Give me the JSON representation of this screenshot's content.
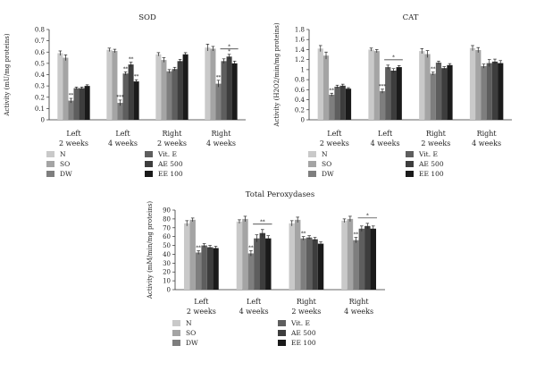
{
  "chart_data": [
    {
      "type": "bar",
      "title": "SOD",
      "ylabel": "Activity (mU/mg proteins)",
      "ylim": [
        0,
        0.8
      ],
      "yticks": [
        "0",
        "0.1",
        "0.2",
        "0.3",
        "0.4",
        "0.5",
        "0.6",
        "0.7",
        "0.8"
      ],
      "categories": [
        [
          "Left",
          "2 weeks"
        ],
        [
          "Left",
          "4 weeks"
        ],
        [
          "Right",
          "2 weeks"
        ],
        [
          "Right",
          "4 weeks"
        ]
      ],
      "series": [
        {
          "name": "N",
          "values": [
            0.59,
            0.62,
            0.58,
            0.64
          ],
          "errors": [
            0.02,
            0.015,
            0.015,
            0.03
          ]
        },
        {
          "name": "SO",
          "values": [
            0.55,
            0.61,
            0.53,
            0.63
          ],
          "errors": [
            0.025,
            0.015,
            0.02,
            0.02
          ]
        },
        {
          "name": "DW",
          "values": [
            0.17,
            0.15,
            0.43,
            0.32
          ],
          "errors": [
            0.02,
            0.025,
            0.015,
            0.03
          ]
        },
        {
          "name": "Vit. E",
          "values": [
            0.28,
            0.41,
            0.45,
            0.52
          ],
          "errors": [
            0.01,
            0.015,
            0.015,
            0.02
          ]
        },
        {
          "name": "AE 500",
          "values": [
            0.28,
            0.49,
            0.52,
            0.56
          ],
          "errors": [
            0.01,
            0.02,
            0.015,
            0.02
          ]
        },
        {
          "name": "EE 100",
          "values": [
            0.3,
            0.34,
            0.58,
            0.5
          ],
          "errors": [
            0.01,
            0.015,
            0.015,
            0.02
          ]
        }
      ],
      "annotations": [
        {
          "text": "**",
          "category": 0,
          "series": 2
        },
        {
          "text": "***",
          "category": 1,
          "series": 2
        },
        {
          "text": "**",
          "category": 1,
          "series": 3
        },
        {
          "text": "**",
          "category": 1,
          "series": 4
        },
        {
          "text": "**",
          "category": 1,
          "series": 5
        },
        {
          "text": "**",
          "category": 3,
          "series": 2
        },
        {
          "text": "*",
          "category": 3,
          "series": 4
        }
      ],
      "brackets": [
        {
          "category": 3,
          "from_series": 3,
          "to_series": 5,
          "text": "*"
        }
      ]
    },
    {
      "type": "bar",
      "title": "CAT",
      "ylabel": "Activity (H2O2/min/mg proteins)",
      "ylim": [
        0,
        1.8
      ],
      "yticks": [
        "0",
        "0.2",
        "0.4",
        "0.6",
        "0.8",
        "1",
        "1.2",
        "1.4",
        "1.6",
        "1.8"
      ],
      "categories": [
        [
          "Left",
          "2 weeks"
        ],
        [
          "Left",
          "4 weeks"
        ],
        [
          "Right",
          "2 weeks"
        ],
        [
          "Right",
          "4 weeks"
        ]
      ],
      "series": [
        {
          "name": "N",
          "values": [
            1.42,
            1.4,
            1.37,
            1.43
          ],
          "errors": [
            0.06,
            0.03,
            0.05,
            0.05
          ]
        },
        {
          "name": "SO",
          "values": [
            1.28,
            1.37,
            1.31,
            1.39
          ],
          "errors": [
            0.07,
            0.03,
            0.07,
            0.05
          ]
        },
        {
          "name": "DW",
          "values": [
            0.5,
            0.57,
            0.92,
            1.07
          ],
          "errors": [
            0.03,
            0.04,
            0.03,
            0.04
          ]
        },
        {
          "name": "Vit. E",
          "values": [
            0.66,
            1.05,
            1.14,
            1.13
          ],
          "errors": [
            0.03,
            0.04,
            0.03,
            0.07
          ]
        },
        {
          "name": "AE 500",
          "values": [
            0.68,
            0.98,
            1.03,
            1.16
          ],
          "errors": [
            0.03,
            0.04,
            0.03,
            0.05
          ]
        },
        {
          "name": "EE 100",
          "values": [
            0.62,
            1.05,
            1.09,
            1.13
          ],
          "errors": [
            0.02,
            0.03,
            0.03,
            0.05
          ]
        }
      ],
      "annotations": [
        {
          "text": "**",
          "category": 0,
          "series": 2
        },
        {
          "text": "***",
          "category": 1,
          "series": 2
        },
        {
          "text": "**",
          "category": 2,
          "series": 2
        }
      ],
      "brackets": [
        {
          "category": 1,
          "from_series": 3,
          "to_series": 5,
          "text": "*"
        }
      ]
    },
    {
      "type": "bar",
      "title": "Total Peroxydases",
      "ylabel": "Activity (mM/min/mg proteins)",
      "ylim": [
        0,
        90
      ],
      "yticks": [
        "0",
        "10",
        "20",
        "30",
        "40",
        "50",
        "60",
        "70",
        "80",
        "90"
      ],
      "categories": [
        [
          "Left",
          "2 weeks"
        ],
        [
          "Left",
          "4 weeks"
        ],
        [
          "Right",
          "2 weeks"
        ],
        [
          "Right",
          "4 weeks"
        ]
      ],
      "series": [
        {
          "name": "N",
          "values": [
            75,
            77,
            75,
            78
          ],
          "errors": [
            3,
            2,
            3,
            2
          ]
        },
        {
          "name": "SO",
          "values": [
            79,
            80,
            79,
            80
          ],
          "errors": [
            2,
            3,
            3,
            3
          ]
        },
        {
          "name": "DW",
          "values": [
            42,
            41,
            58,
            56
          ],
          "errors": [
            2,
            3,
            2,
            3
          ]
        },
        {
          "name": "Vit. E",
          "values": [
            50,
            58,
            59,
            69
          ],
          "errors": [
            2,
            4,
            2,
            3
          ]
        },
        {
          "name": "AE 500",
          "values": [
            48,
            64,
            57,
            72
          ],
          "errors": [
            2,
            4,
            2,
            3
          ]
        },
        {
          "name": "EE 100",
          "values": [
            47,
            58,
            52,
            69
          ],
          "errors": [
            2,
            3,
            2,
            3
          ]
        }
      ],
      "annotations": [
        {
          "text": "**",
          "category": 0,
          "series": 2
        },
        {
          "text": "**",
          "category": 1,
          "series": 2
        },
        {
          "text": "**",
          "category": 2,
          "series": 2
        },
        {
          "text": "**",
          "category": 3,
          "series": 2
        }
      ],
      "brackets": [
        {
          "category": 1,
          "from_series": 3,
          "to_series": 5,
          "text": "**"
        },
        {
          "category": 3,
          "from_series": 3,
          "to_series": 5,
          "text": "*"
        }
      ]
    }
  ],
  "colors": [
    "#c9c9c9",
    "#a4a4a4",
    "#7e7e7e",
    "#5e5e5e",
    "#3d3d3d",
    "#1a1a1a"
  ],
  "legend_placement": "below each chart, two columns",
  "grid": false
}
